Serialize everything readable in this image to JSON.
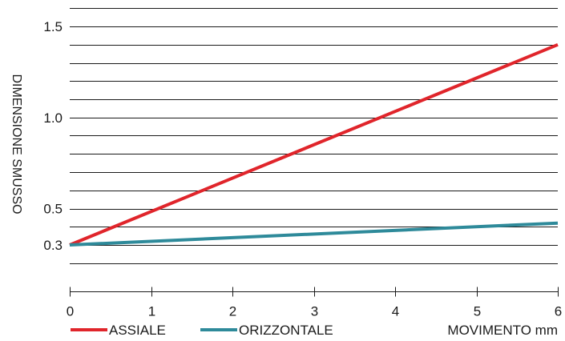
{
  "chart_data": {
    "type": "line",
    "title": "",
    "xlabel": "MOVIMENTO mm",
    "ylabel": "DIMENSIONE SMUSSO",
    "xlim": [
      0,
      6
    ],
    "ylim": [
      0.1,
      1.6
    ],
    "x_ticks": [
      "0",
      "1",
      "2",
      "3",
      "4",
      "5",
      "6"
    ],
    "y_ticks": [
      "0.3",
      "0.5",
      "1.0",
      "1.5"
    ],
    "grid": "horizontal",
    "legend_position": "bottom-left",
    "series": [
      {
        "name": "ASSIALE",
        "color": "#e0252b",
        "x": [
          0,
          6
        ],
        "y": [
          0.3,
          1.4
        ]
      },
      {
        "name": "ORIZZONTALE",
        "color": "#2e8a9a",
        "x": [
          0,
          6
        ],
        "y": [
          0.3,
          0.42
        ]
      }
    ]
  }
}
